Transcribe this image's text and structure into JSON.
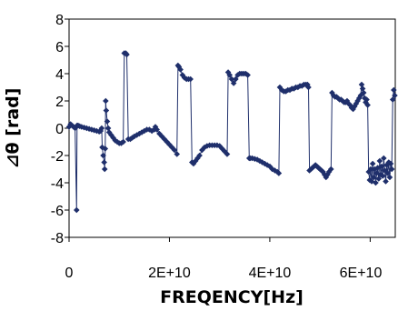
{
  "chart_data": {
    "type": "line",
    "title": "",
    "xlabel": "FREQENCY[Hz]",
    "ylabel": "⊿θ [rad]",
    "xlim": [
      0,
      65000000000
    ],
    "ylim": [
      -8,
      8
    ],
    "x_tick_values": [
      0,
      20000000000,
      40000000000,
      60000000000
    ],
    "x_tick_labels": [
      "0",
      "2E+10",
      "4E+10",
      "6E+10"
    ],
    "y_tick_values": [
      8,
      6,
      4,
      2,
      0,
      -2,
      -4,
      -6,
      -8
    ],
    "y_tick_labels": [
      "8",
      "6",
      "4",
      "2",
      "0",
      "-2",
      "-4",
      "-6",
      "-8"
    ],
    "grid": false,
    "legend": "none",
    "colors": {
      "series": "#1f2f6b",
      "frame": "#000000"
    },
    "series": [
      {
        "marker": "diamond",
        "x": [
          0,
          300000000,
          600000000,
          900000000,
          1200000000,
          1500000000,
          1600000000,
          1800000000,
          2100000000,
          2500000000,
          3000000000,
          3500000000,
          4000000000,
          4500000000,
          5000000000,
          5500000000,
          6000000000,
          6300000000,
          6500000000,
          6600000000,
          6800000000,
          7000000000,
          7100000000,
          7200000000,
          7300000000,
          7400000000,
          7600000000,
          7800000000,
          8000000000,
          8400000000,
          8800000000,
          9200000000,
          9600000000,
          10000000000,
          10400000000,
          10800000000,
          11000000000,
          11300000000,
          11500000000,
          11800000000,
          12200000000,
          12600000000,
          13000000000,
          13500000000,
          14000000000,
          14500000000,
          15000000000,
          15500000000,
          16000000000,
          16500000000,
          17000000000,
          17200000000,
          17500000000,
          18000000000,
          18500000000,
          19000000000,
          19500000000,
          20000000000,
          20500000000,
          21000000000,
          21500000000,
          21700000000,
          21900000000,
          22200000000,
          22600000000,
          23000000000,
          23400000000,
          23800000000,
          24200000000,
          24500000000,
          24800000000,
          25200000000,
          25600000000,
          26000000000,
          26500000000,
          27000000000,
          27500000000,
          28000000000,
          28500000000,
          29000000000,
          29500000000,
          30000000000,
          30500000000,
          31000000000,
          31500000000,
          31700000000,
          32000000000,
          32400000000,
          32800000000,
          33200000000,
          33600000000,
          34000000000,
          34400000000,
          34800000000,
          35200000000,
          35600000000,
          35900000000,
          36100000000,
          36500000000,
          37000000000,
          37500000000,
          38000000000,
          38500000000,
          39000000000,
          39500000000,
          40000000000,
          40500000000,
          41000000000,
          41500000000,
          41800000000,
          42000000000,
          42400000000,
          42800000000,
          43200000000,
          43600000000,
          44000000000,
          44400000000,
          44800000000,
          45200000000,
          45600000000,
          46000000000,
          46400000000,
          46800000000,
          47200000000,
          47500000000,
          47700000000,
          47900000000,
          48200000000,
          48500000000,
          48800000000,
          49100000000,
          49400000000,
          49700000000,
          50000000000,
          50300000000,
          50600000000,
          50900000000,
          51200000000,
          51500000000,
          51800000000,
          52200000000,
          52400000000,
          52700000000,
          53000000000,
          53300000000,
          53600000000,
          53900000000,
          54200000000,
          54500000000,
          54800000000,
          55100000000,
          55400000000,
          55700000000,
          56000000000,
          56300000000,
          56600000000,
          56900000000,
          57200000000,
          57500000000,
          57800000000,
          58100000000,
          58300000000,
          58500000000,
          58700000000,
          58900000000,
          59100000000,
          59300000000,
          59500000000,
          59700000000,
          59900000000,
          60100000000,
          60300000000,
          60500000000,
          60700000000,
          60900000000,
          61100000000,
          61300000000,
          61500000000,
          61700000000,
          61900000000,
          62100000000,
          62300000000,
          62500000000,
          62700000000,
          62900000000,
          63100000000,
          63300000000,
          63500000000,
          63700000000,
          63900000000,
          64100000000,
          64300000000,
          64500000000,
          64700000000,
          64900000000
        ],
        "y": [
          0.1,
          0.3,
          0.2,
          0.1,
          0.0,
          -6.0,
          0.2,
          0.2,
          0.15,
          0.1,
          0.05,
          0.0,
          -0.05,
          -0.1,
          -0.15,
          -0.2,
          -0.25,
          -0.2,
          0.0,
          -1.4,
          -2.0,
          -2.5,
          -3.0,
          -1.5,
          2.0,
          1.3,
          0.5,
          0.0,
          -0.3,
          -0.5,
          -0.7,
          -0.9,
          -1.0,
          -1.1,
          -1.1,
          -1.0,
          5.5,
          5.5,
          5.4,
          -0.8,
          -0.8,
          -0.7,
          -0.6,
          -0.5,
          -0.4,
          -0.3,
          -0.2,
          -0.1,
          -0.1,
          -0.2,
          -0.1,
          0.1,
          -0.1,
          -0.4,
          -0.6,
          -0.8,
          -1.0,
          -1.2,
          -1.4,
          -1.6,
          -1.9,
          4.6,
          4.5,
          4.3,
          3.9,
          3.7,
          3.6,
          3.6,
          3.6,
          -2.5,
          -2.6,
          -2.4,
          -2.2,
          -2.0,
          -1.6,
          -1.4,
          -1.3,
          -1.25,
          -1.25,
          -1.25,
          -1.25,
          -1.3,
          -1.5,
          -1.7,
          -1.9,
          4.1,
          3.9,
          3.6,
          3.3,
          3.6,
          3.9,
          4.0,
          4.0,
          4.0,
          4.0,
          3.9,
          -2.2,
          -2.2,
          -2.2,
          -2.25,
          -2.3,
          -2.4,
          -2.5,
          -2.6,
          -2.7,
          -2.8,
          -3.0,
          -3.1,
          -3.2,
          -3.3,
          3.0,
          2.8,
          2.7,
          2.7,
          2.8,
          2.8,
          2.9,
          2.9,
          3.0,
          3.0,
          3.1,
          3.1,
          3.2,
          3.2,
          3.2,
          3.0,
          -3.1,
          -3.0,
          -2.9,
          -2.8,
          -2.7,
          -2.8,
          -2.9,
          -3.0,
          -3.1,
          -3.2,
          -3.4,
          -3.6,
          -3.4,
          -3.2,
          -3.0,
          2.6,
          2.4,
          2.3,
          2.3,
          2.2,
          2.1,
          2.1,
          2.0,
          1.9,
          1.9,
          2.0,
          1.8,
          1.7,
          1.5,
          1.4,
          1.6,
          1.8,
          2.0,
          2.2,
          2.4,
          3.2,
          2.9,
          2.6,
          2.2,
          1.9,
          2.1,
          1.7,
          -3.2,
          -3.8,
          -3.0,
          -3.9,
          -2.6,
          -3.6,
          -3.0,
          -4.0,
          -3.3,
          -2.9,
          -3.7,
          -2.4,
          -3.4,
          -2.8,
          -3.5,
          -2.2,
          -3.1,
          -3.9,
          -2.7,
          -3.3,
          -2.5,
          -3.6,
          -2.6,
          -3.0,
          2.1,
          2.8,
          2.4
        ]
      }
    ]
  }
}
